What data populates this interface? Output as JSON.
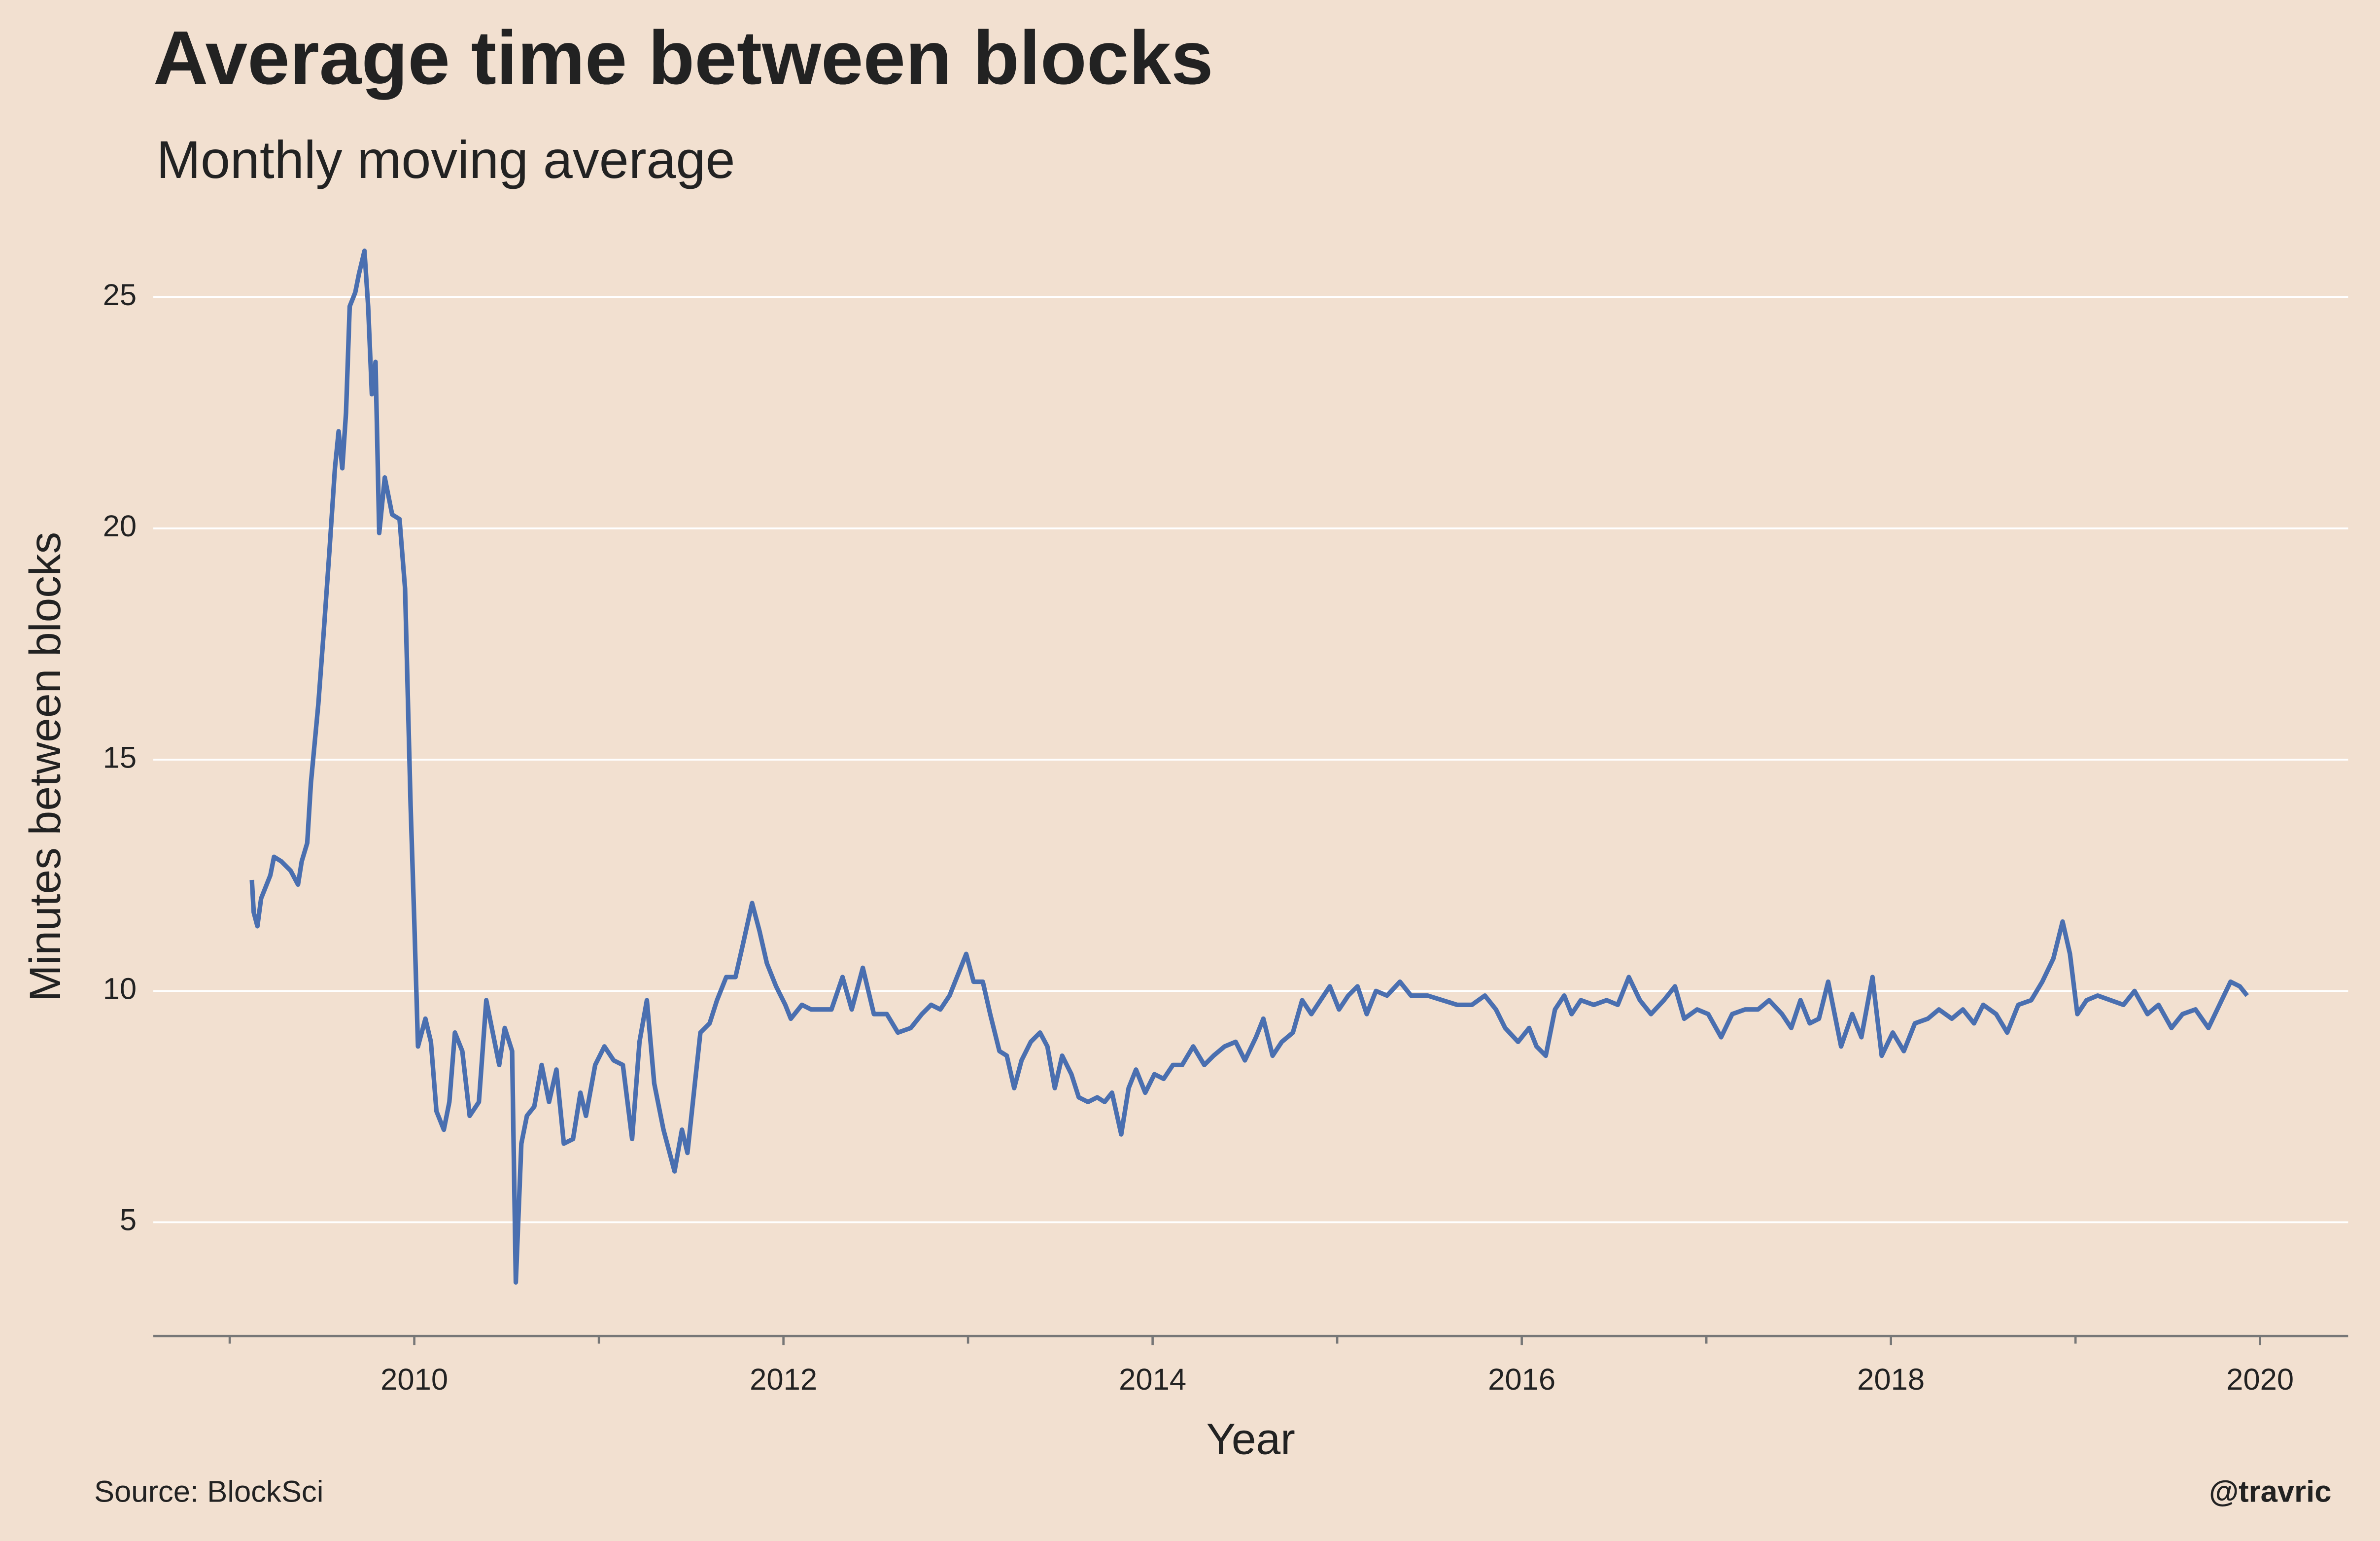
{
  "chart_data": {
    "type": "line",
    "title": "Average time between blocks",
    "subtitle": "Monthly moving average",
    "xlabel": "Year",
    "ylabel": "Minutes between blocks",
    "source": "Source: BlockSci",
    "credit": "@travric",
    "color": "#4a6fb0",
    "background": "#f2e0d0",
    "grid": true,
    "xlim": [
      2008.586,
      2020.477
    ],
    "xticks": [
      2010,
      2012,
      2014,
      2016,
      2018,
      2020
    ],
    "xminorticks": [
      2009,
      2011,
      2013,
      2015,
      2017,
      2019
    ],
    "ylim": [
      2.54,
      26.5
    ],
    "yticks": [
      5,
      10,
      15,
      20,
      25
    ],
    "x": [
      2009.12,
      2009.13,
      2009.15,
      2009.17,
      2009.22,
      2009.24,
      2009.28,
      2009.33,
      2009.37,
      2009.39,
      2009.42,
      2009.44,
      2009.48,
      2009.51,
      2009.54,
      2009.57,
      2009.59,
      2009.61,
      2009.63,
      2009.65,
      2009.68,
      2009.7,
      2009.73,
      2009.75,
      2009.77,
      2009.79,
      2009.81,
      2009.84,
      2009.88,
      2009.92,
      2009.95,
      2009.98,
      2010.0,
      2010.02,
      2010.06,
      2010.09,
      2010.12,
      2010.16,
      2010.19,
      2010.22,
      2010.26,
      2010.3,
      2010.35,
      2010.39,
      2010.43,
      2010.46,
      2010.49,
      2010.53,
      2010.55,
      2010.58,
      2010.61,
      2010.65,
      2010.69,
      2010.73,
      2010.77,
      2010.81,
      2010.86,
      2010.9,
      2010.93,
      2010.98,
      2011.03,
      2011.08,
      2011.13,
      2011.18,
      2011.22,
      2011.26,
      2011.3,
      2011.35,
      2011.41,
      2011.45,
      2011.48,
      2011.52,
      2011.55,
      2011.6,
      2011.64,
      2011.69,
      2011.74,
      2011.78,
      2011.83,
      2011.87,
      2011.91,
      2011.96,
      2012.01,
      2012.04,
      2012.1,
      2012.15,
      2012.21,
      2012.26,
      2012.32,
      2012.37,
      2012.43,
      2012.49,
      2012.56,
      2012.62,
      2012.69,
      2012.75,
      2012.8,
      2012.85,
      2012.9,
      2012.94,
      2012.99,
      2013.03,
      2013.08,
      2013.12,
      2013.17,
      2013.21,
      2013.25,
      2013.29,
      2013.34,
      2013.39,
      2013.43,
      2013.47,
      2013.51,
      2013.56,
      2013.6,
      2013.65,
      2013.7,
      2013.74,
      2013.78,
      2013.83,
      2013.87,
      2013.91,
      2013.96,
      2014.01,
      2014.06,
      2014.11,
      2014.16,
      2014.22,
      2014.28,
      2014.33,
      2014.39,
      2014.45,
      2014.5,
      2014.56,
      2014.6,
      2014.65,
      2014.7,
      2014.76,
      2014.81,
      2014.86,
      2014.91,
      2014.96,
      2015.01,
      2015.06,
      2015.11,
      2015.16,
      2015.21,
      2015.27,
      2015.34,
      2015.4,
      2015.49,
      2015.57,
      2015.65,
      2015.73,
      2015.8,
      2015.86,
      2015.91,
      2015.98,
      2016.04,
      2016.08,
      2016.13,
      2016.18,
      2016.23,
      2016.27,
      2016.32,
      2016.39,
      2016.46,
      2016.52,
      2016.58,
      2016.64,
      2016.7,
      2016.77,
      2016.83,
      2016.88,
      2016.95,
      2017.01,
      2017.08,
      2017.14,
      2017.21,
      2017.28,
      2017.34,
      2017.41,
      2017.46,
      2017.51,
      2017.56,
      2017.61,
      2017.66,
      2017.73,
      2017.79,
      2017.84,
      2017.9,
      2017.95,
      2018.01,
      2018.07,
      2018.13,
      2018.2,
      2018.26,
      2018.33,
      2018.39,
      2018.45,
      2018.5,
      2018.57,
      2018.63,
      2018.69,
      2018.76,
      2018.82,
      2018.88,
      2018.93,
      2018.97,
      2019.01,
      2019.06,
      2019.12,
      2019.19,
      2019.26,
      2019.32,
      2019.39,
      2019.45,
      2019.52,
      2019.58,
      2019.65,
      2019.72,
      2019.78,
      2019.84,
      2019.89,
      2019.93
    ],
    "values": [
      12.4,
      11.7,
      11.4,
      12.0,
      12.5,
      12.9,
      12.8,
      12.6,
      12.3,
      12.8,
      13.2,
      14.5,
      16.2,
      17.8,
      19.5,
      21.3,
      22.1,
      21.3,
      22.5,
      24.8,
      25.1,
      25.5,
      26.0,
      24.8,
      22.9,
      23.6,
      19.9,
      21.1,
      20.3,
      20.2,
      18.7,
      14.0,
      11.5,
      8.8,
      9.4,
      8.9,
      7.4,
      7.0,
      7.6,
      9.1,
      8.7,
      7.3,
      7.6,
      9.8,
      9.0,
      8.4,
      9.2,
      8.7,
      3.7,
      6.7,
      7.3,
      7.5,
      8.4,
      7.6,
      8.3,
      6.7,
      6.8,
      7.8,
      7.3,
      8.4,
      8.8,
      8.5,
      8.4,
      6.8,
      8.9,
      9.8,
      8.0,
      7.0,
      6.1,
      7.0,
      6.5,
      8.0,
      9.1,
      9.3,
      9.8,
      10.3,
      10.3,
      11.0,
      11.9,
      11.3,
      10.6,
      10.1,
      9.7,
      9.4,
      9.7,
      9.6,
      9.6,
      9.6,
      10.3,
      9.6,
      10.5,
      9.5,
      9.5,
      9.1,
      9.2,
      9.5,
      9.7,
      9.6,
      9.9,
      10.3,
      10.8,
      10.2,
      10.2,
      9.5,
      8.7,
      8.6,
      7.9,
      8.5,
      8.9,
      9.1,
      8.8,
      7.9,
      8.6,
      8.2,
      7.7,
      7.6,
      7.7,
      7.6,
      7.8,
      6.9,
      7.9,
      8.3,
      7.8,
      8.2,
      8.1,
      8.4,
      8.4,
      8.8,
      8.4,
      8.6,
      8.8,
      8.9,
      8.5,
      9.0,
      9.4,
      8.6,
      8.9,
      9.1,
      9.8,
      9.5,
      9.8,
      10.1,
      9.6,
      9.9,
      10.1,
      9.5,
      10.0,
      9.9,
      10.2,
      9.9,
      9.9,
      9.8,
      9.7,
      9.7,
      9.9,
      9.6,
      9.2,
      8.9,
      9.2,
      8.8,
      8.6,
      9.6,
      9.9,
      9.5,
      9.8,
      9.7,
      9.8,
      9.7,
      10.3,
      9.8,
      9.5,
      9.8,
      10.1,
      9.4,
      9.6,
      9.5,
      9.0,
      9.5,
      9.6,
      9.6,
      9.8,
      9.5,
      9.2,
      9.8,
      9.3,
      9.4,
      10.2,
      8.8,
      9.5,
      9.0,
      10.3,
      8.6,
      9.1,
      8.7,
      9.3,
      9.4,
      9.6,
      9.4,
      9.6,
      9.3,
      9.7,
      9.5,
      9.1,
      9.7,
      9.8,
      10.2,
      10.7,
      11.5,
      10.8,
      9.5,
      9.8,
      9.9,
      9.8,
      9.7,
      10.0,
      9.5,
      9.7,
      9.2,
      9.5,
      9.6,
      9.2,
      9.7,
      10.2,
      10.1,
      9.9
    ]
  }
}
